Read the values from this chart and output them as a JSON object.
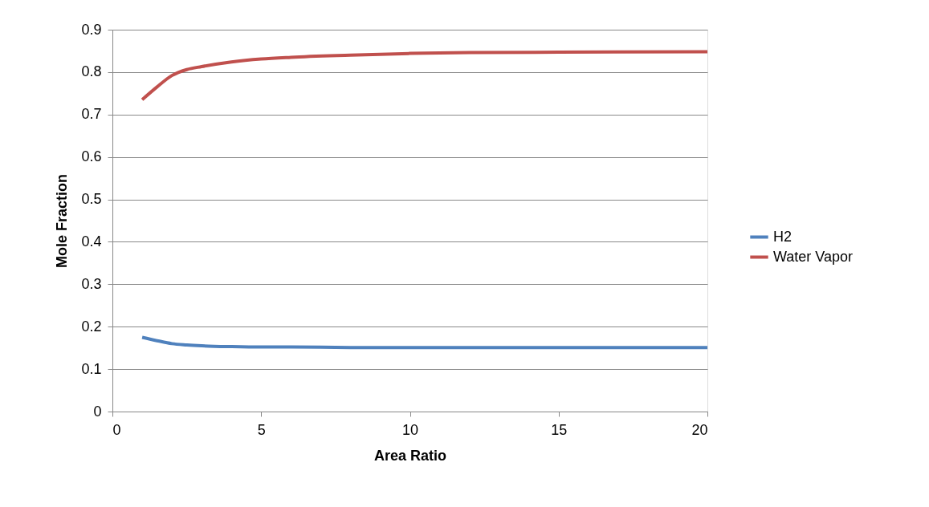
{
  "chart_data": {
    "type": "line",
    "xlabel": "Area Ratio",
    "ylabel": "Mole Fraction",
    "x": [
      1,
      1.5,
      2,
      2.5,
      3,
      4,
      5,
      6,
      8,
      10,
      12,
      15,
      20
    ],
    "series": [
      {
        "name": "H2",
        "color": "#4f81bd",
        "values": [
          0.175,
          0.167,
          0.16,
          0.157,
          0.155,
          0.153,
          0.152,
          0.152,
          0.151,
          0.151,
          0.151,
          0.151,
          0.151
        ]
      },
      {
        "name": "Water Vapor",
        "color": "#c0504d",
        "values": [
          0.735,
          0.765,
          0.792,
          0.806,
          0.813,
          0.824,
          0.831,
          0.835,
          0.84,
          0.844,
          0.846,
          0.847,
          0.848
        ]
      }
    ],
    "xlim": [
      0,
      20
    ],
    "xticks": [
      0,
      5,
      10,
      15,
      20
    ],
    "ylim": [
      0,
      0.9
    ],
    "yticks": [
      0,
      0.1,
      0.2,
      0.3,
      0.4,
      0.5,
      0.6,
      0.7,
      0.8,
      0.9
    ],
    "grid": "y",
    "legend": "right",
    "marker": "none",
    "line_style": "solid"
  }
}
